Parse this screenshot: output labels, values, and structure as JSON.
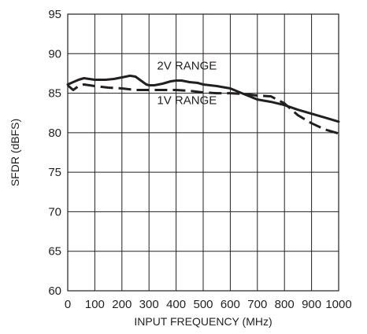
{
  "chart_data": {
    "type": "line",
    "title": "",
    "xlabel": "INPUT FREQUENCY (MHz)",
    "ylabel": "SFDR (dBFS)",
    "xlim": [
      0,
      1000
    ],
    "ylim": [
      60,
      95
    ],
    "xticks": [
      0,
      100,
      200,
      300,
      400,
      500,
      600,
      700,
      800,
      900,
      1000
    ],
    "xtick_labels": [
      "0",
      "100",
      "200",
      "300",
      "400",
      "500",
      "600",
      "700",
      "800",
      "900",
      "1000"
    ],
    "yticks": [
      60,
      65,
      70,
      75,
      80,
      85,
      90,
      95
    ],
    "ytick_labels": [
      "60",
      "65",
      "70",
      "75",
      "80",
      "85",
      "90",
      "95"
    ],
    "grid": true,
    "series": [
      {
        "name": "2V RANGE",
        "style": "solid",
        "x": [
          0,
          20,
          40,
          60,
          80,
          100,
          140,
          170,
          200,
          230,
          250,
          270,
          290,
          300,
          320,
          350,
          380,
          400,
          420,
          450,
          480,
          500,
          550,
          600,
          650,
          700,
          750,
          800,
          850,
          900,
          950,
          1000
        ],
        "y": [
          86.1,
          86.4,
          86.7,
          86.9,
          86.8,
          86.7,
          86.7,
          86.8,
          87.0,
          87.2,
          87.1,
          86.6,
          86.1,
          86.0,
          86.0,
          86.2,
          86.5,
          86.6,
          86.6,
          86.4,
          86.3,
          86.1,
          85.9,
          85.6,
          84.9,
          84.2,
          83.9,
          83.5,
          82.9,
          82.4,
          81.9,
          81.4
        ]
      },
      {
        "name": "1V RANGE",
        "style": "dashed",
        "x": [
          0,
          20,
          40,
          60,
          80,
          100,
          150,
          200,
          250,
          300,
          350,
          400,
          450,
          500,
          550,
          600,
          650,
          700,
          750,
          800,
          850,
          900,
          950,
          1000
        ],
        "y": [
          86.0,
          85.4,
          85.9,
          86.1,
          86.0,
          85.9,
          85.7,
          85.6,
          85.4,
          85.4,
          85.4,
          85.4,
          85.3,
          85.1,
          85.0,
          85.0,
          84.9,
          84.7,
          84.6,
          83.7,
          82.2,
          81.2,
          80.4,
          79.9
        ]
      }
    ],
    "annotations": [
      {
        "text": "2V RANGE",
        "x": 440,
        "y": 88.0
      },
      {
        "text": "1V RANGE",
        "x": 440,
        "y": 83.6
      }
    ]
  }
}
